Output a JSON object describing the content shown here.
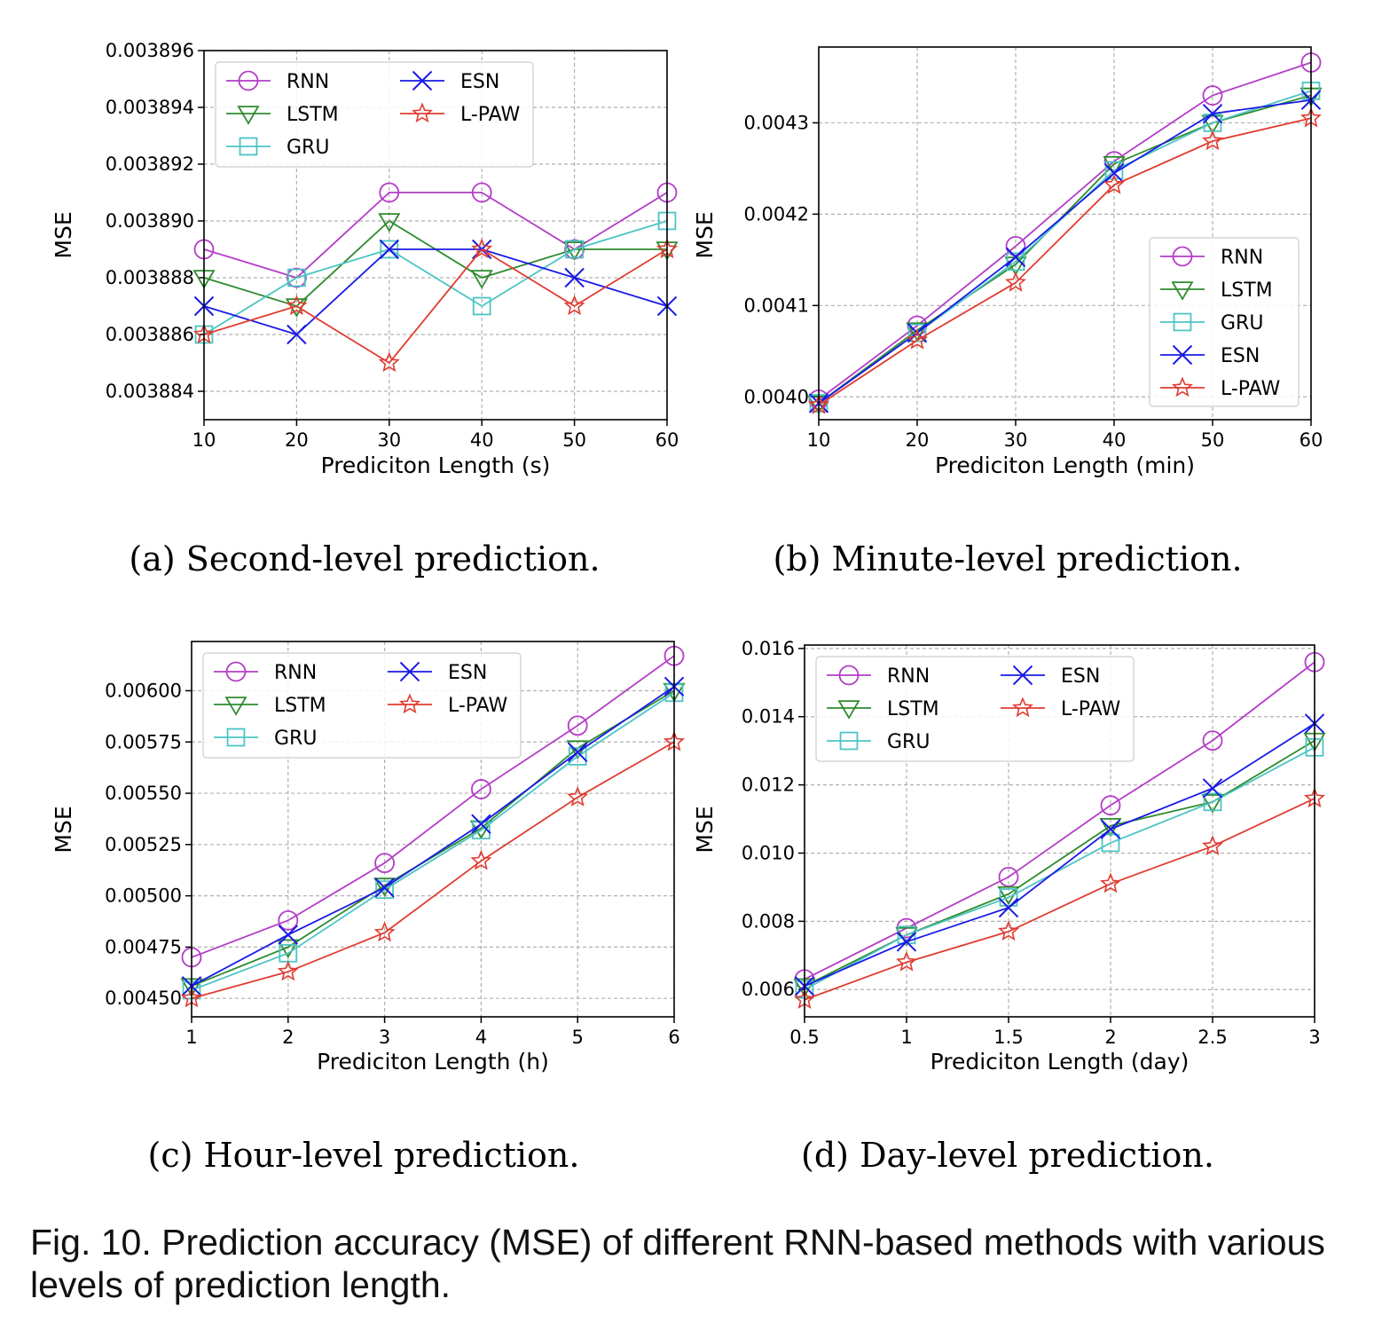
{
  "caption": "Fig. 10. Prediction accuracy (MSE) of different RNN-based methods with various levels of prediction length.",
  "colors": {
    "RNN": "#b33dc6",
    "LSTM": "#2e8b2e",
    "GRU": "#4cc4c4",
    "ESN": "#1a1ae6",
    "L-PAW": "#e03c31"
  },
  "markers": {
    "RNN": "circle",
    "LSTM": "triangle-down",
    "GRU": "square",
    "ESN": "x",
    "L-PAW": "star"
  },
  "chart_data": [
    {
      "type": "line",
      "subcaption": "(a) Second-level prediction.",
      "xlabel": "Prediciton Length (s)",
      "ylabel": "MSE",
      "xlim": [
        10,
        60
      ],
      "ylim": [
        0.003883,
        0.003896
      ],
      "xticks": [
        10,
        20,
        30,
        40,
        50,
        60
      ],
      "xtick_labels": [
        "10",
        "20",
        "30",
        "40",
        "50",
        "60"
      ],
      "yticks": [
        0.003884,
        0.003886,
        0.003888,
        0.00389,
        0.003892,
        0.003894,
        0.003896
      ],
      "ytick_labels": [
        "0.003884",
        "0.003886",
        "0.003888",
        "0.003890",
        "0.003892",
        "0.003894",
        "0.003896"
      ],
      "grid": true,
      "legend": "top-left",
      "legend_columns": 2,
      "x": [
        10,
        20,
        30,
        40,
        50,
        60
      ],
      "series": [
        {
          "name": "RNN",
          "values": [
            0.003889,
            0.003888,
            0.003891,
            0.003891,
            0.003889,
            0.003891
          ]
        },
        {
          "name": "LSTM",
          "values": [
            0.003888,
            0.003887,
            0.00389,
            0.003888,
            0.003889,
            0.003889
          ]
        },
        {
          "name": "GRU",
          "values": [
            0.003886,
            0.003888,
            0.003889,
            0.003887,
            0.003889,
            0.00389
          ]
        },
        {
          "name": "ESN",
          "values": [
            0.003887,
            0.003886,
            0.003889,
            0.003889,
            0.003888,
            0.003887
          ]
        },
        {
          "name": "L-PAW",
          "values": [
            0.003886,
            0.003887,
            0.003885,
            0.003889,
            0.003887,
            0.003889
          ]
        }
      ]
    },
    {
      "type": "line",
      "subcaption": "(b) Minute-level prediction.",
      "xlabel": "Prediciton Length (min)",
      "ylabel": "MSE",
      "xlim": [
        10,
        60
      ],
      "ylim": [
        0.003975,
        0.004383
      ],
      "xticks": [
        10,
        20,
        30,
        40,
        50,
        60
      ],
      "xtick_labels": [
        "10",
        "20",
        "30",
        "40",
        "50",
        "60"
      ],
      "yticks": [
        0.004,
        0.0041,
        0.0042,
        0.0043
      ],
      "ytick_labels": [
        "0.0040",
        "0.0041",
        "0.0042",
        "0.0043"
      ],
      "grid": true,
      "legend": "lower-right",
      "legend_columns": 1,
      "x": [
        10,
        20,
        30,
        40,
        50,
        60
      ],
      "series": [
        {
          "name": "RNN",
          "values": [
            0.003997,
            0.004078,
            0.004165,
            0.004258,
            0.00433,
            0.004366
          ]
        },
        {
          "name": "LSTM",
          "values": [
            0.003993,
            0.004073,
            0.004145,
            0.004255,
            0.0043,
            0.00433
          ]
        },
        {
          "name": "GRU",
          "values": [
            0.003993,
            0.00407,
            0.004148,
            0.004248,
            0.0043,
            0.004335
          ]
        },
        {
          "name": "ESN",
          "values": [
            0.003993,
            0.00407,
            0.004153,
            0.004245,
            0.00431,
            0.004325
          ]
        },
        {
          "name": "L-PAW",
          "values": [
            0.003991,
            0.004062,
            0.004125,
            0.004232,
            0.00428,
            0.004305
          ]
        }
      ]
    },
    {
      "type": "line",
      "subcaption": "(c) Hour-level prediction.",
      "xlabel": "Prediciton Length (h)",
      "ylabel": "MSE",
      "xlim": [
        1,
        6
      ],
      "ylim": [
        0.00441,
        0.00624
      ],
      "xticks": [
        1,
        2,
        3,
        4,
        5,
        6
      ],
      "xtick_labels": [
        "1",
        "2",
        "3",
        "4",
        "5",
        "6"
      ],
      "yticks": [
        0.0045,
        0.00475,
        0.005,
        0.00525,
        0.0055,
        0.00575,
        0.006
      ],
      "ytick_labels": [
        "0.00450",
        "0.00475",
        "0.00500",
        "0.00525",
        "0.00550",
        "0.00575",
        "0.00600"
      ],
      "grid": true,
      "legend": "top-left",
      "legend_columns": 2,
      "x": [
        1,
        2,
        3,
        4,
        5,
        6
      ],
      "series": [
        {
          "name": "RNN",
          "values": [
            0.0047,
            0.00488,
            0.00516,
            0.00552,
            0.00583,
            0.00617
          ]
        },
        {
          "name": "LSTM",
          "values": [
            0.00456,
            0.00475,
            0.00505,
            0.00533,
            0.00572,
            0.006
          ]
        },
        {
          "name": "GRU",
          "values": [
            0.00454,
            0.00472,
            0.00503,
            0.00532,
            0.00568,
            0.00599
          ]
        },
        {
          "name": "ESN",
          "values": [
            0.00456,
            0.00481,
            0.00504,
            0.00535,
            0.0057,
            0.00602
          ]
        },
        {
          "name": "L-PAW",
          "values": [
            0.0045,
            0.00463,
            0.00482,
            0.00517,
            0.00548,
            0.00575
          ]
        }
      ]
    },
    {
      "type": "line",
      "subcaption": "(d) Day-level prediction.",
      "xlabel": "Prediciton Length (day)",
      "ylabel": "MSE",
      "xlim": [
        0.5,
        3
      ],
      "ylim": [
        0.0052,
        0.0161
      ],
      "xticks": [
        0.5,
        1,
        1.5,
        2,
        2.5,
        3
      ],
      "xtick_labels": [
        "0.5",
        "1",
        "1.5",
        "2",
        "2.5",
        "3"
      ],
      "yticks": [
        0.006,
        0.008,
        0.01,
        0.012,
        0.014,
        0.016
      ],
      "ytick_labels": [
        "0.006",
        "0.008",
        "0.010",
        "0.012",
        "0.014",
        "0.016"
      ],
      "grid": true,
      "legend": "top-left",
      "legend_columns": 2,
      "x": [
        0.5,
        1,
        1.5,
        2,
        2.5,
        3
      ],
      "series": [
        {
          "name": "RNN",
          "values": [
            0.0063,
            0.0078,
            0.0093,
            0.0114,
            0.0133,
            0.0156
          ]
        },
        {
          "name": "LSTM",
          "values": [
            0.0061,
            0.0076,
            0.0088,
            0.0108,
            0.0115,
            0.0133
          ]
        },
        {
          "name": "GRU",
          "values": [
            0.006,
            0.0076,
            0.0087,
            0.0103,
            0.0115,
            0.0131
          ]
        },
        {
          "name": "ESN",
          "values": [
            0.0061,
            0.0074,
            0.0084,
            0.0107,
            0.0119,
            0.0138
          ]
        },
        {
          "name": "L-PAW",
          "values": [
            0.0057,
            0.0068,
            0.0077,
            0.0091,
            0.0102,
            0.0116
          ]
        }
      ]
    }
  ]
}
